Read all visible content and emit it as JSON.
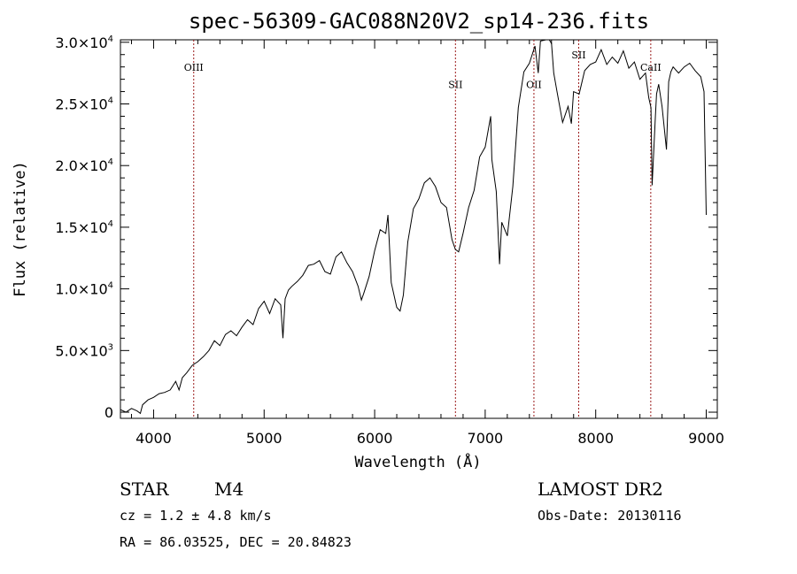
{
  "chart_data": {
    "type": "line",
    "title": "spec-56309-GAC088N20V2_sp14-236.fits",
    "xlabel": "Wavelength (Å)",
    "ylabel": "Flux (relative)",
    "xlim": [
      3700,
      9100
    ],
    "ylim": [
      -500,
      30200
    ],
    "x_ticks": [
      {
        "value": 4000,
        "label": "4000"
      },
      {
        "value": 5000,
        "label": "5000"
      },
      {
        "value": 6000,
        "label": "6000"
      },
      {
        "value": 7000,
        "label": "7000"
      },
      {
        "value": 8000,
        "label": "8000"
      },
      {
        "value": 9000,
        "label": "9000"
      }
    ],
    "y_ticks": [
      {
        "value": 0,
        "mantissa": "0",
        "exponent": ""
      },
      {
        "value": 5000,
        "mantissa": "5.0×10",
        "exponent": "3"
      },
      {
        "value": 10000,
        "mantissa": "1.0×10",
        "exponent": "4"
      },
      {
        "value": 15000,
        "mantissa": "1.5×10",
        "exponent": "4"
      },
      {
        "value": 20000,
        "mantissa": "2.0×10",
        "exponent": "4"
      },
      {
        "value": 25000,
        "mantissa": "2.5×10",
        "exponent": "4"
      },
      {
        "value": 30000,
        "mantissa": "3.0×10",
        "exponent": "4"
      }
    ],
    "line_markers": [
      {
        "label": "OIII",
        "wavelength": 4363,
        "label_flux": 27700
      },
      {
        "label": "SII",
        "wavelength": 6731,
        "label_flux": 26300
      },
      {
        "label": "OII",
        "wavelength": 7441,
        "label_flux": 26300
      },
      {
        "label": "SII",
        "wavelength": 7846,
        "label_flux": 28700
      },
      {
        "label": "CaII",
        "wavelength": 8498,
        "label_flux": 27700
      }
    ],
    "series": [
      {
        "color": "#000000",
        "x": [
          3700,
          3750,
          3800,
          3850,
          3880,
          3900,
          3950,
          4000,
          4050,
          4100,
          4150,
          4200,
          4230,
          4260,
          4300,
          4350,
          4400,
          4450,
          4500,
          4550,
          4600,
          4650,
          4700,
          4750,
          4800,
          4850,
          4900,
          4950,
          5000,
          5050,
          5100,
          5150,
          5170,
          5190,
          5220,
          5250,
          5300,
          5350,
          5400,
          5450,
          5500,
          5550,
          5600,
          5650,
          5700,
          5750,
          5800,
          5850,
          5880,
          5900,
          5950,
          6000,
          6050,
          6100,
          6120,
          6150,
          6200,
          6230,
          6260,
          6300,
          6350,
          6400,
          6450,
          6500,
          6550,
          6600,
          6650,
          6700,
          6730,
          6760,
          6800,
          6850,
          6900,
          6950,
          7000,
          7050,
          7060,
          7100,
          7130,
          7150,
          7200,
          7250,
          7300,
          7350,
          7400,
          7450,
          7480,
          7500,
          7550,
          7580,
          7600,
          7620,
          7650,
          7680,
          7700,
          7750,
          7780,
          7800,
          7850,
          7900,
          7950,
          8000,
          8050,
          8100,
          8150,
          8200,
          8250,
          8300,
          8350,
          8400,
          8450,
          8480,
          8500,
          8510,
          8540,
          8550,
          8570,
          8600,
          8640,
          8660,
          8680,
          8700,
          8750,
          8800,
          8850,
          8900,
          8950,
          8980,
          9000
        ],
        "y": [
          200,
          0,
          300,
          100,
          -100,
          600,
          1000,
          1200,
          1500,
          1600,
          1800,
          2500,
          1800,
          2800,
          3200,
          3800,
          4100,
          4500,
          5000,
          5800,
          5400,
          6300,
          6600,
          6200,
          6900,
          7500,
          7100,
          8400,
          9000,
          8000,
          9200,
          8700,
          6000,
          9200,
          9900,
          10200,
          10600,
          11100,
          11900,
          12000,
          12300,
          11400,
          11200,
          12600,
          13000,
          12100,
          11400,
          10200,
          9100,
          9600,
          11000,
          13100,
          14800,
          14500,
          16000,
          10500,
          8500,
          8200,
          9500,
          13800,
          16500,
          17300,
          18600,
          19000,
          18300,
          17000,
          16600,
          14000,
          13200,
          13000,
          14500,
          16600,
          18000,
          20700,
          21500,
          24000,
          20500,
          17900,
          12000,
          15400,
          14300,
          18300,
          24700,
          27600,
          28300,
          29700,
          27500,
          30100,
          30600,
          30200,
          29900,
          27500,
          26000,
          24500,
          23500,
          24800,
          23400,
          26000,
          25800,
          27700,
          28200,
          28400,
          29400,
          28200,
          28800,
          28300,
          29300,
          27900,
          28400,
          27000,
          27500,
          25500,
          24700,
          18400,
          24000,
          25800,
          26600,
          24800,
          21300,
          26800,
          27600,
          28000,
          27500,
          28000,
          28300,
          27700,
          27200,
          26000,
          16000
        ]
      }
    ]
  },
  "footer": {
    "object_type": "STAR",
    "subclass": "M4",
    "redshift": "cz = 1.2 ± 4.8 km/s",
    "coordinates": "RA =  86.03525, DEC =  20.84823",
    "survey": "LAMOST DR2",
    "obs_date": "Obs-Date: 20130116"
  }
}
